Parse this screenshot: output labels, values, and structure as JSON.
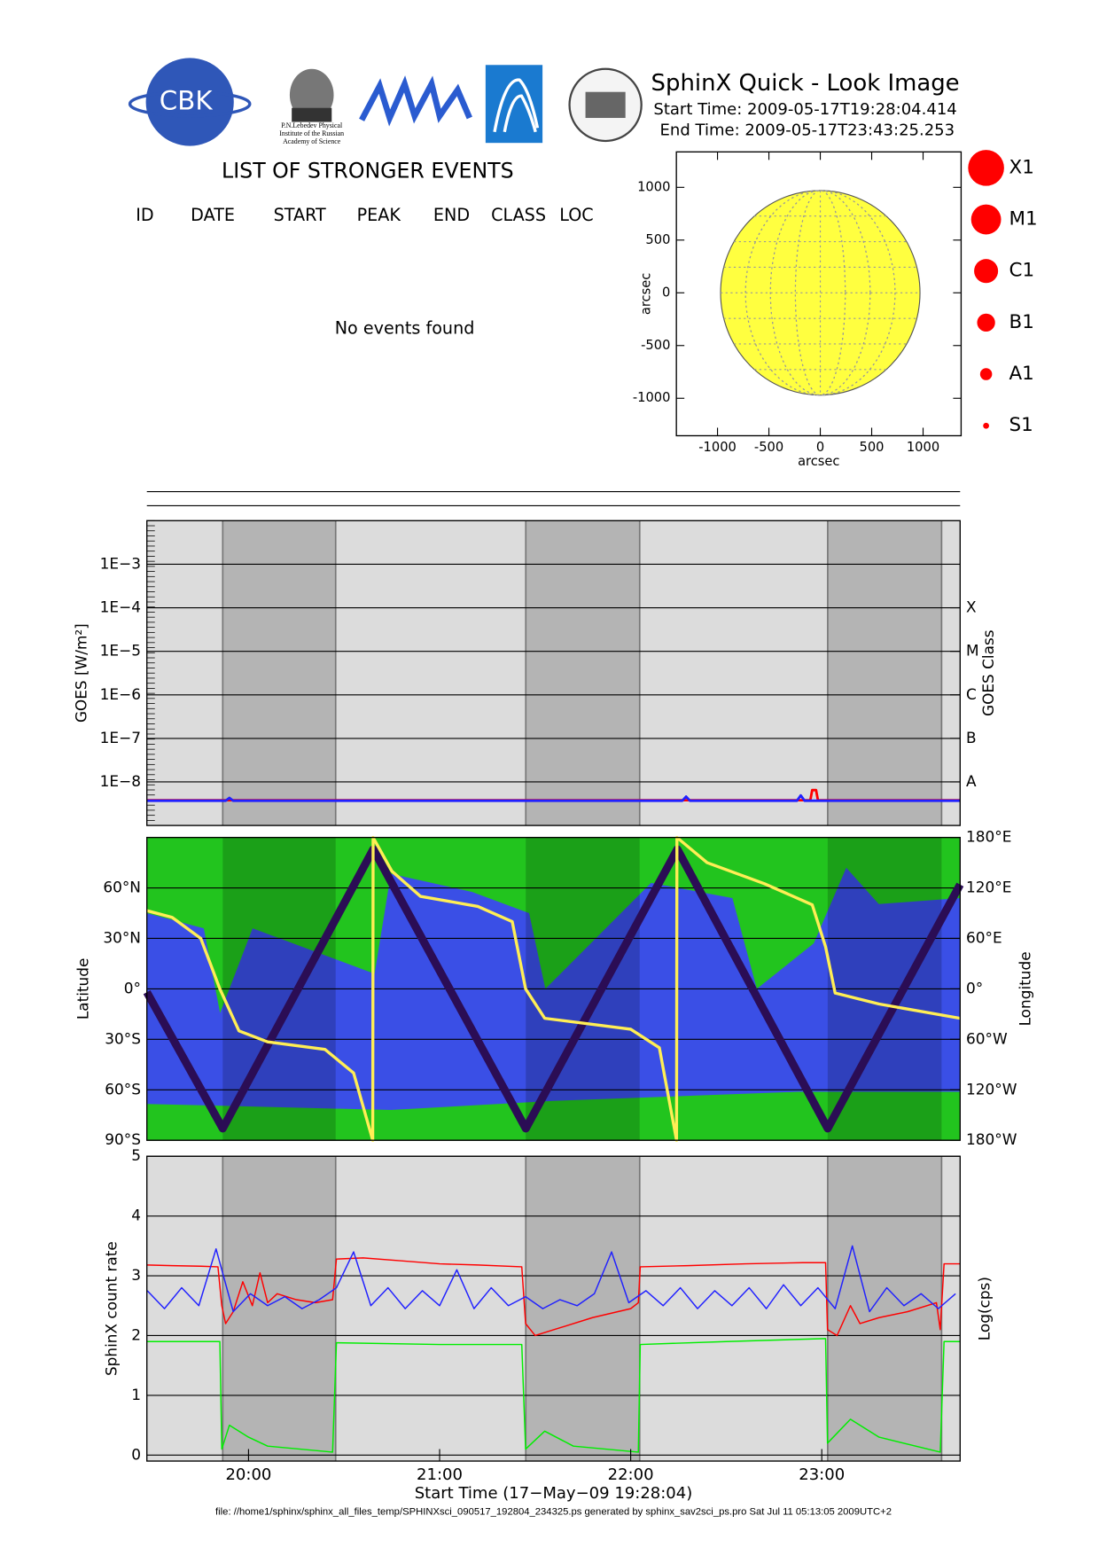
{
  "header": {
    "title": "SphinX Quick - Look Image",
    "start_time": "Start Time: 2009-05-17T19:28:04.414",
    "end_time": "End Time: 2009-05-17T23:43:25.253",
    "logo_cbk": "CBK",
    "logo_lebedev": [
      "P.N.Lebedev Physical",
      "Institute of the Russian",
      "Academy of Science"
    ]
  },
  "events": {
    "title": "LIST OF STRONGER EVENTS",
    "columns": [
      "ID",
      "DATE",
      "START",
      "PEAK",
      "END",
      "CLASS",
      "LOC"
    ],
    "message": "No events found"
  },
  "class_legend": [
    "X1",
    "M1",
    "C1",
    "B1",
    "A1",
    "S1"
  ],
  "eclipse_intervals": [
    [
      19.865,
      20.456
    ],
    [
      21.451,
      22.047
    ],
    [
      23.031,
      23.627
    ]
  ],
  "footer": "file: //home1/sphinx/sphinx_all_files_temp/SPHINXsci_090517_192804_234325.ps generated by sphinx_sav2sci_ps.pro Sat Jul 11 05:13:05 2009UTC+2",
  "chart_data": [
    {
      "type": "disk",
      "xlabel": "arcsec",
      "ylabel": "arcsec",
      "xlim": [
        -1400,
        1370
      ],
      "ylim": [
        -1355,
        1336
      ],
      "xticks": [
        -1000,
        -500,
        0,
        500,
        1000
      ],
      "yticks": [
        -1000,
        -500,
        0,
        500,
        1000
      ],
      "radius": 970,
      "color": "#ffff40",
      "grid": false
    },
    {
      "type": "line",
      "ylabel": "GOES [W/m²]",
      "y2label": "GOES Class",
      "log_y": true,
      "grid": true,
      "xlim": [
        19.468,
        23.724
      ],
      "ylim": [
        1e-09,
        0.01
      ],
      "yticks": [
        {
          "value": 0.001,
          "label": "1E−3"
        },
        {
          "value": 0.0001,
          "label": "1E−4"
        },
        {
          "value": 1e-05,
          "label": "1E−5"
        },
        {
          "value": 1e-06,
          "label": "1E−6"
        },
        {
          "value": 1e-07,
          "label": "1E−7"
        },
        {
          "value": 1e-08,
          "label": "1E−8"
        }
      ],
      "y2lim": [
        1e-09,
        0.01
      ],
      "y2ticks": [
        {
          "value": 0.0001,
          "label": "X"
        },
        {
          "value": 1e-05,
          "label": "M"
        },
        {
          "value": 1e-06,
          "label": "C"
        },
        {
          "value": 1e-07,
          "label": "B"
        },
        {
          "value": 1e-08,
          "label": "A"
        }
      ],
      "series": [
        {
          "color": "#ff0000",
          "x": [
            19.468,
            20.0,
            20.5,
            21.0,
            21.5,
            22.0,
            22.5,
            22.94,
            22.95,
            22.97,
            22.98,
            23.3,
            23.724
          ],
          "values": [
            3.8e-09,
            3.8e-09,
            3.8e-09,
            3.8e-09,
            3.8e-09,
            3.8e-09,
            3.8e-09,
            3.8e-09,
            6.5e-09,
            6.5e-09,
            3.8e-09,
            3.8e-09,
            3.8e-09
          ]
        },
        {
          "color": "#2020ff",
          "x": [
            19.468,
            19.88,
            19.9,
            19.92,
            20.5,
            21.0,
            21.5,
            22.27,
            22.29,
            22.31,
            22.87,
            22.89,
            22.91,
            23.3,
            23.724
          ],
          "values": [
            3.7e-09,
            3.7e-09,
            4.3e-09,
            3.7e-09,
            3.7e-09,
            3.7e-09,
            3.7e-09,
            3.7e-09,
            4.6e-09,
            3.7e-09,
            3.7e-09,
            4.9e-09,
            3.7e-09,
            3.7e-09,
            3.7e-09
          ]
        }
      ]
    },
    {
      "type": "map",
      "ylabel": "Latitude",
      "y2label": "Longitude",
      "grid": true,
      "xlim": [
        19.468,
        23.724
      ],
      "ylim": [
        -90,
        90
      ],
      "yticks": [
        {
          "value": -90,
          "label": "90°S"
        },
        {
          "value": -60,
          "label": "60°S"
        },
        {
          "value": -30,
          "label": "30°S"
        },
        {
          "value": 0,
          "label": "0°"
        },
        {
          "value": 30,
          "label": "30°N"
        },
        {
          "value": 60,
          "label": "60°N"
        }
      ],
      "y2lim": [
        -180,
        180
      ],
      "y2ticks": [
        {
          "value": 180,
          "label": "180°E"
        },
        {
          "value": 120,
          "label": "120°E"
        },
        {
          "value": 60,
          "label": "60°E"
        },
        {
          "value": 0,
          "label": "0°"
        },
        {
          "value": -60,
          "label": "60°W"
        },
        {
          "value": -120,
          "label": "120°W"
        },
        {
          "value": -180,
          "label": "180°W"
        }
      ],
      "series": [
        {
          "color": "#2b0d55",
          "x": [
            19.468,
            19.865,
            20.653,
            21.451,
            22.244,
            23.031,
            23.724
          ],
          "values": [
            -2,
            -83,
            83,
            -83,
            83,
            -83,
            62
          ]
        },
        {
          "color": "#ffee55",
          "axis": "y2",
          "x": [
            19.468,
            19.6,
            19.75,
            19.85,
            19.95,
            20.1,
            20.4,
            20.55,
            20.65,
            20.652,
            20.75,
            20.9,
            21.2,
            21.38,
            21.45,
            21.55,
            22.0,
            22.15,
            22.24,
            22.242,
            22.4,
            22.7,
            22.95,
            23.02,
            23.07,
            23.3,
            23.724
          ],
          "values": [
            93,
            85,
            60,
            0,
            -50,
            -63,
            -72,
            -100,
            -180,
            180,
            140,
            110,
            98,
            80,
            0,
            -35,
            -48,
            -70,
            -180,
            180,
            150,
            125,
            100,
            50,
            -5,
            -18,
            -35
          ]
        }
      ]
    },
    {
      "type": "line",
      "ylabel": "SphinX count rate",
      "y2label": "Log(cps)",
      "xlabel": "Start Time (17−May−09 19:28:04)",
      "grid": true,
      "xlim": [
        19.468,
        23.724
      ],
      "ylim": [
        -0.1,
        5
      ],
      "xticks": [
        {
          "value": 20,
          "label": "20:00"
        },
        {
          "value": 21,
          "label": "21:00"
        },
        {
          "value": 22,
          "label": "22:00"
        },
        {
          "value": 23,
          "label": "23:00"
        }
      ],
      "yticks": [
        0,
        1,
        2,
        3,
        4,
        5
      ],
      "series": [
        {
          "color": "#00ee00",
          "x": [
            19.468,
            19.85,
            19.86,
            19.9,
            20.0,
            20.1,
            20.44,
            20.46,
            21.0,
            21.43,
            21.45,
            21.55,
            21.7,
            22.04,
            22.05,
            22.5,
            23.02,
            23.03,
            23.15,
            23.3,
            23.62,
            23.64,
            23.724
          ],
          "values": [
            1.9,
            1.9,
            0.1,
            0.5,
            0.3,
            0.15,
            0.05,
            1.88,
            1.85,
            1.85,
            0.1,
            0.4,
            0.15,
            0.05,
            1.85,
            1.9,
            1.95,
            0.2,
            0.6,
            0.3,
            0.05,
            1.9,
            1.9
          ]
        },
        {
          "color": "#ff0000",
          "x": [
            19.468,
            19.6,
            19.75,
            19.84,
            19.86,
            19.88,
            19.92,
            19.97,
            20.02,
            20.06,
            20.1,
            20.15,
            20.25,
            20.35,
            20.44,
            20.46,
            20.6,
            20.8,
            21.0,
            21.2,
            21.43,
            21.45,
            21.5,
            21.6,
            21.8,
            22.0,
            22.04,
            22.05,
            22.3,
            22.6,
            22.9,
            23.02,
            23.03,
            23.08,
            23.15,
            23.2,
            23.3,
            23.45,
            23.6,
            23.62,
            23.64,
            23.724
          ],
          "values": [
            3.18,
            3.17,
            3.16,
            3.15,
            2.5,
            2.2,
            2.4,
            2.9,
            2.5,
            3.05,
            2.55,
            2.7,
            2.6,
            2.55,
            2.6,
            3.28,
            3.3,
            3.25,
            3.2,
            3.18,
            3.15,
            2.2,
            2.0,
            2.1,
            2.3,
            2.45,
            2.55,
            3.15,
            3.17,
            3.2,
            3.22,
            3.22,
            2.1,
            2.0,
            2.5,
            2.2,
            2.3,
            2.4,
            2.55,
            2.1,
            3.2,
            3.2
          ]
        },
        {
          "color": "#2020ff",
          "x": [
            19.47,
            19.56,
            19.65,
            19.74,
            19.83,
            19.92,
            20.01,
            20.1,
            20.19,
            20.28,
            20.37,
            20.46,
            20.55,
            20.64,
            20.73,
            20.82,
            20.91,
            21.0,
            21.09,
            21.18,
            21.27,
            21.36,
            21.45,
            21.54,
            21.63,
            21.72,
            21.81,
            21.9,
            21.99,
            22.08,
            22.17,
            22.26,
            22.35,
            22.44,
            22.53,
            22.62,
            22.71,
            22.8,
            22.89,
            22.98,
            23.07,
            23.16,
            23.25,
            23.34,
            23.43,
            23.52,
            23.61,
            23.7
          ],
          "values": [
            2.75,
            2.45,
            2.8,
            2.5,
            3.45,
            2.4,
            2.7,
            2.5,
            2.65,
            2.45,
            2.6,
            2.8,
            3.4,
            2.5,
            2.8,
            2.45,
            2.75,
            2.5,
            3.1,
            2.45,
            2.8,
            2.5,
            2.65,
            2.45,
            2.6,
            2.5,
            2.7,
            3.4,
            2.55,
            2.75,
            2.5,
            2.8,
            2.45,
            2.75,
            2.5,
            2.8,
            2.45,
            2.85,
            2.5,
            2.8,
            2.45,
            3.5,
            2.4,
            2.8,
            2.5,
            2.7,
            2.45,
            2.7
          ]
        }
      ]
    }
  ]
}
